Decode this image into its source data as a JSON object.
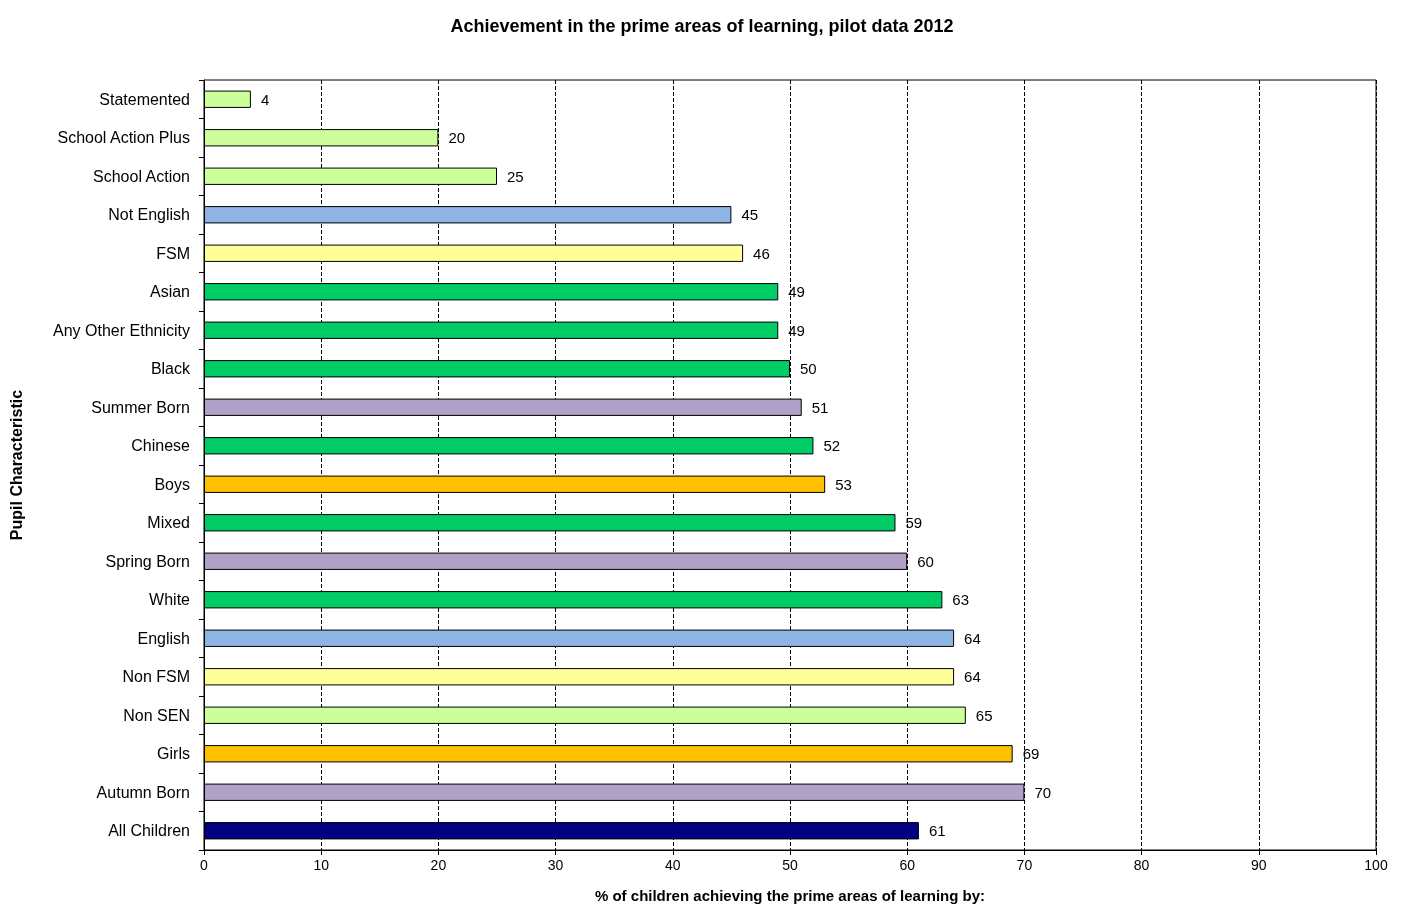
{
  "chart_data": {
    "type": "bar",
    "orientation": "horizontal",
    "title": "Achievement in the prime areas of learning, pilot data 2012",
    "xlabel": "% of children achieving the prime areas of learning by:",
    "ylabel": "Pupil Characteristic",
    "categories": [
      "Statemented",
      "School Action Plus",
      "School Action",
      "Not English",
      "FSM",
      "Asian",
      "Any Other Ethnicity",
      "Black",
      "Summer Born",
      "Chinese",
      "Boys",
      "Mixed",
      "Spring Born",
      "White",
      "English",
      "Non FSM",
      "Non SEN",
      "Girls",
      "Autumn Born",
      "All Children"
    ],
    "values": [
      4,
      20,
      25,
      45,
      46,
      49,
      49,
      50,
      51,
      52,
      53,
      59,
      60,
      63,
      64,
      64,
      65,
      69,
      70,
      61
    ],
    "colors": [
      "#ccff99",
      "#ccff99",
      "#ccff99",
      "#8db4e2",
      "#ffff99",
      "#00cc66",
      "#00cc66",
      "#00cc66",
      "#b1a0c7",
      "#00cc66",
      "#ffc000",
      "#00cc66",
      "#b1a0c7",
      "#00cc66",
      "#8db4e2",
      "#ffff99",
      "#ccff99",
      "#ffc000",
      "#b1a0c7",
      "#000080"
    ],
    "xlim": [
      0,
      100
    ],
    "xticks": [
      0,
      10,
      20,
      30,
      40,
      50,
      60,
      70,
      80,
      90,
      100
    ],
    "grid": "x",
    "data_labels": true,
    "line_style": "dashed"
  }
}
